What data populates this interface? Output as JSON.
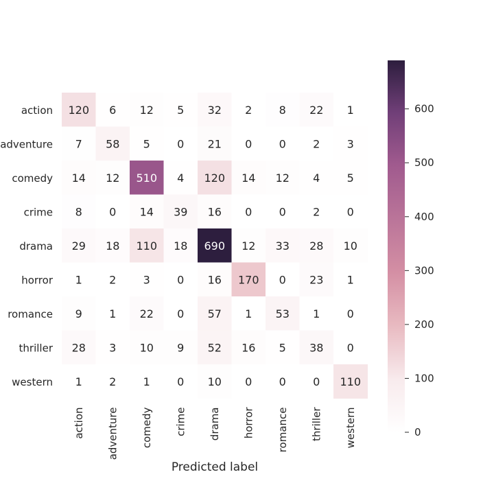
{
  "chart_data": {
    "type": "heatmap",
    "title": "",
    "xlabel": "Predicted label",
    "ylabel": "",
    "x_categories": [
      "action",
      "adventure",
      "comedy",
      "crime",
      "drama",
      "horror",
      "romance",
      "thriller",
      "western"
    ],
    "y_categories": [
      "action",
      "adventure",
      "comedy",
      "crime",
      "drama",
      "horror",
      "romance",
      "thriller",
      "western"
    ],
    "values": [
      [
        120,
        6,
        12,
        5,
        32,
        2,
        8,
        22,
        1
      ],
      [
        7,
        58,
        5,
        0,
        21,
        0,
        0,
        2,
        3
      ],
      [
        14,
        12,
        510,
        4,
        120,
        14,
        12,
        4,
        5
      ],
      [
        8,
        0,
        14,
        39,
        16,
        0,
        0,
        2,
        0
      ],
      [
        29,
        18,
        110,
        18,
        690,
        12,
        33,
        28,
        10
      ],
      [
        1,
        2,
        3,
        0,
        16,
        170,
        0,
        23,
        1
      ],
      [
        9,
        1,
        22,
        0,
        57,
        1,
        53,
        1,
        0
      ],
      [
        28,
        3,
        10,
        9,
        52,
        16,
        5,
        38,
        0
      ],
      [
        1,
        2,
        1,
        0,
        10,
        0,
        0,
        0,
        110
      ]
    ],
    "colorbar": {
      "min": 0,
      "max": 690,
      "ticks": [
        0,
        100,
        200,
        300,
        400,
        500,
        600
      ],
      "colors": [
        "#ffffff",
        "#f8ebed",
        "#e8b9c0",
        "#d48fa4",
        "#a05a8e",
        "#703f78",
        "#2d1e3e"
      ]
    },
    "annotation_colors": {
      "dark": "#262626",
      "light": "#ffffff"
    },
    "grid": false
  }
}
